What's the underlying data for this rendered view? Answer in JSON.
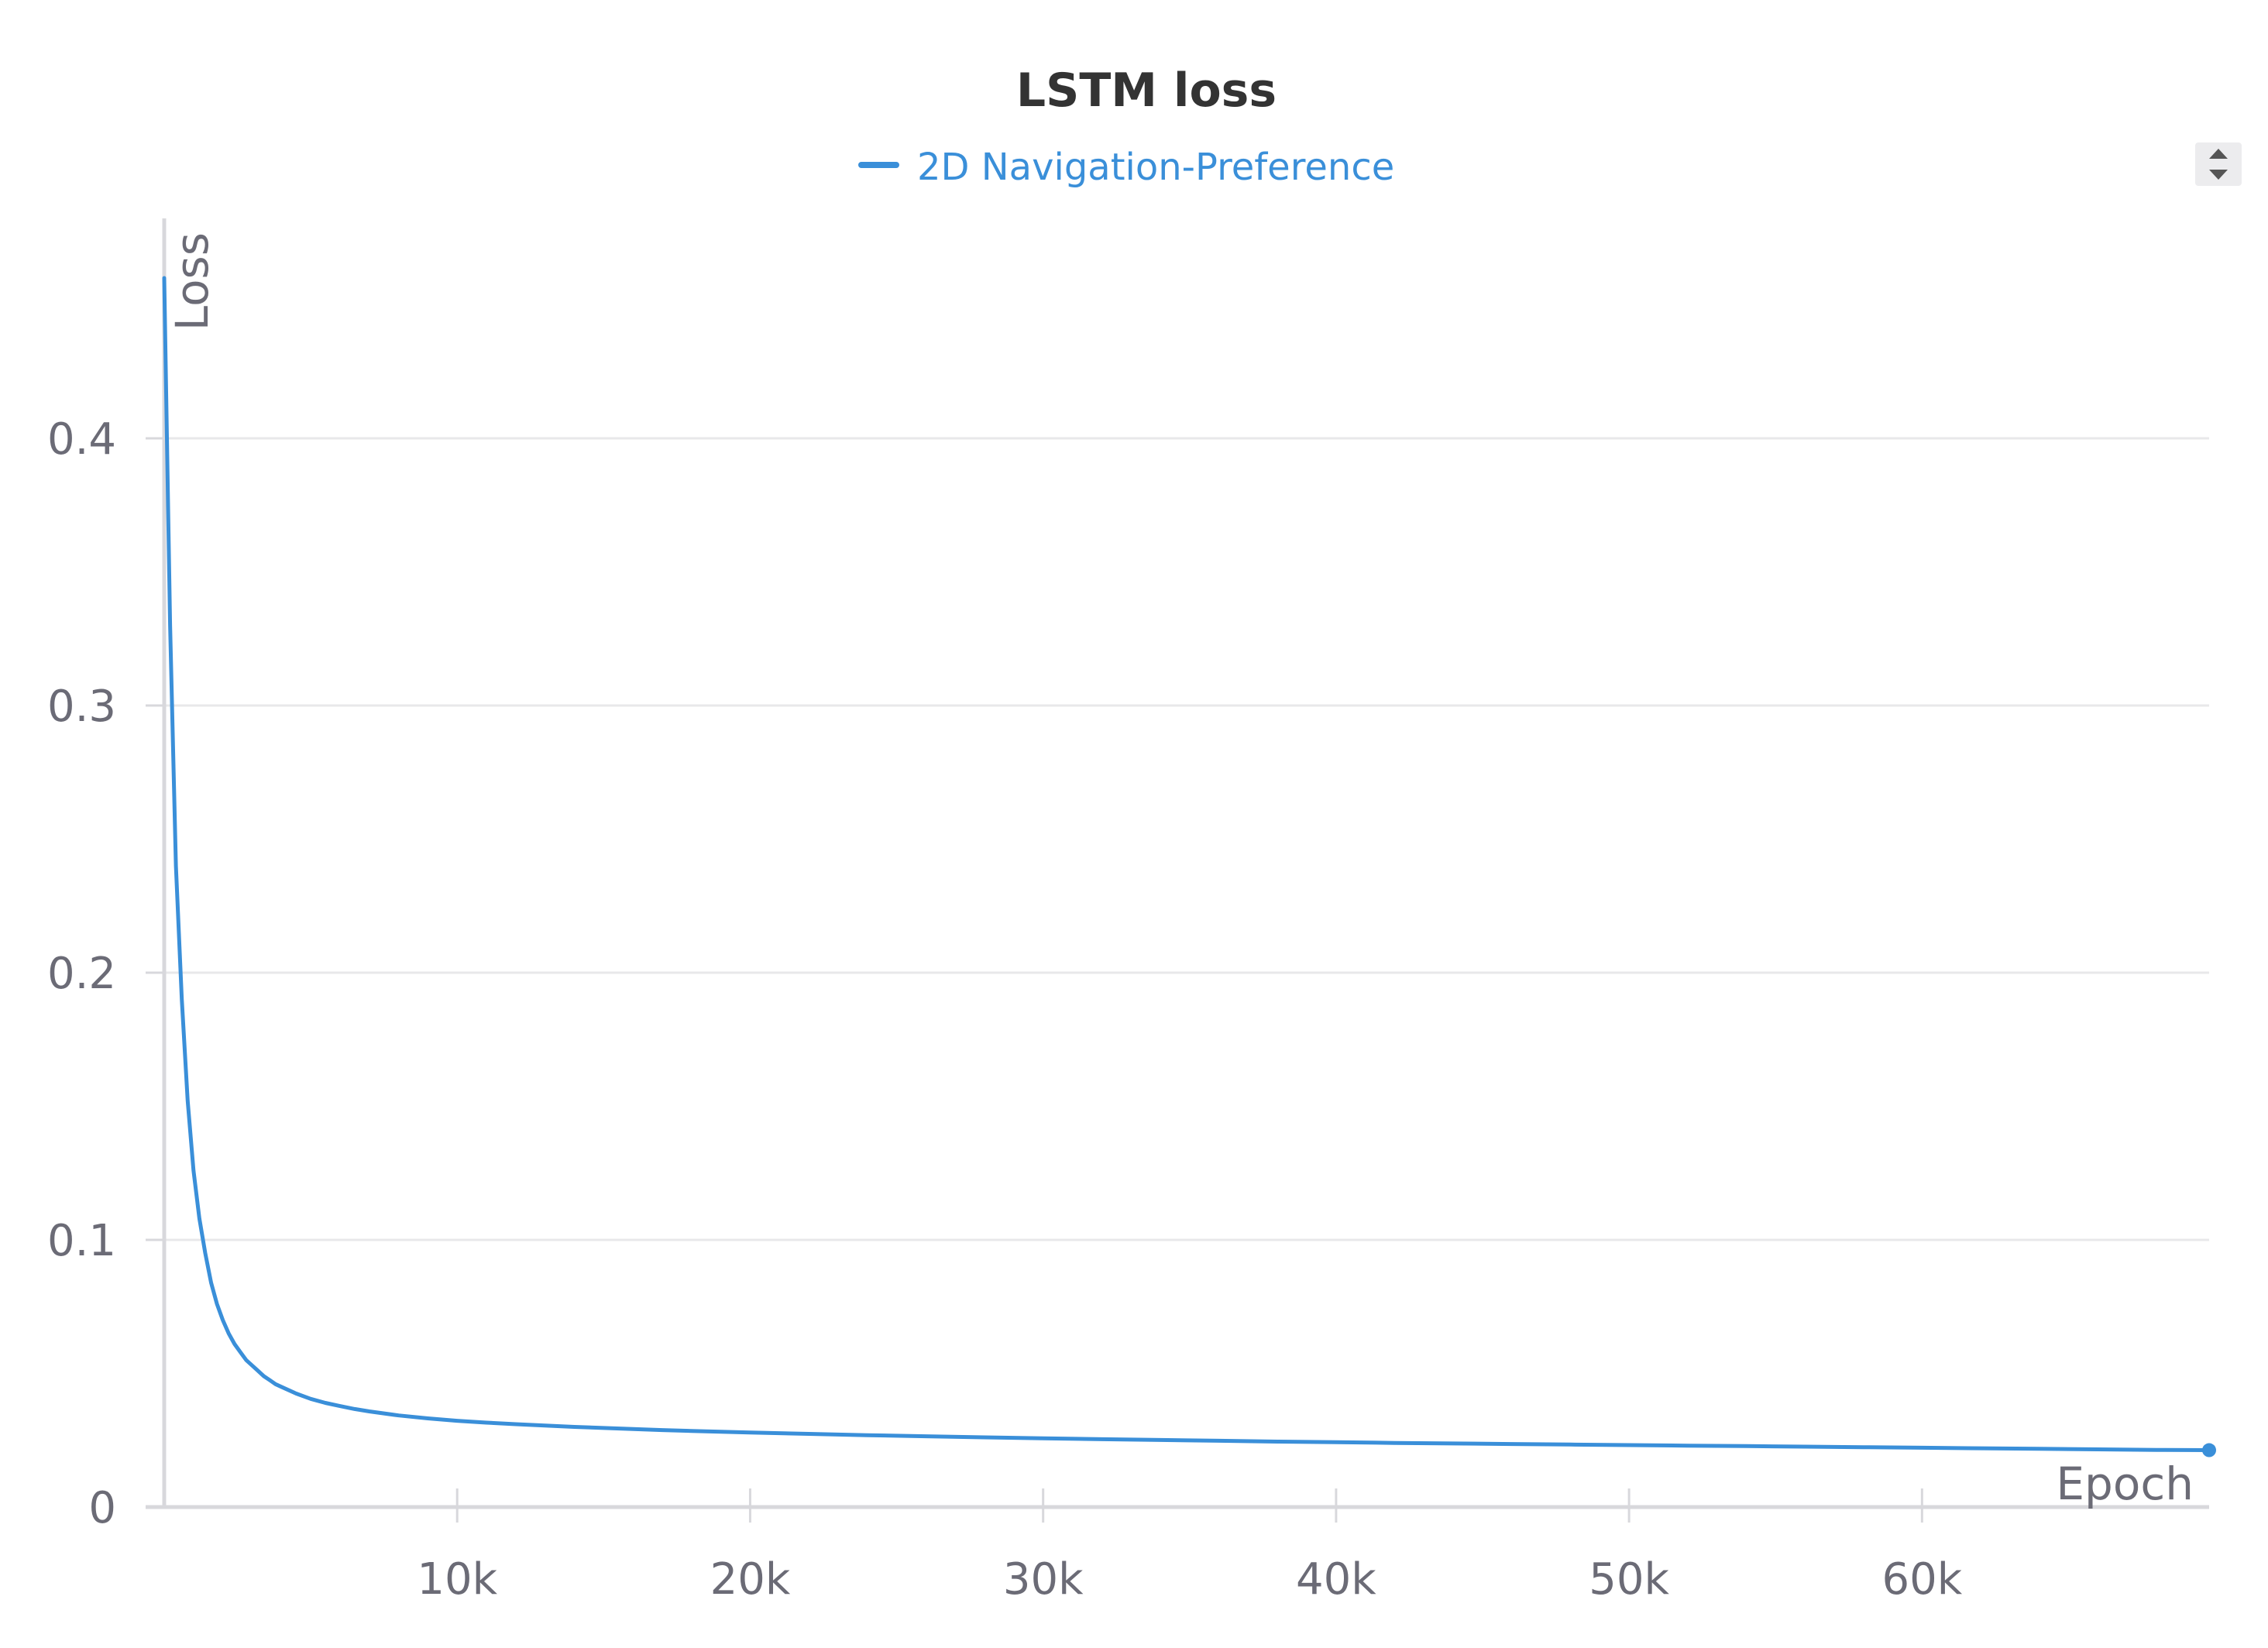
{
  "colors": {
    "series": "#3a8fd9",
    "grid": "#e8e8ea",
    "axis": "#d8d8dc",
    "text": "#6b6b76",
    "title": "#333333",
    "scroller_bg": "#ececee",
    "scroller_arrow": "#555555"
  },
  "icons": {
    "legend_scroller": "up-down-arrows-icon"
  },
  "chart_data": {
    "type": "line",
    "title": "LSTM loss",
    "xlabel": "Epoch",
    "ylabel": "Loss",
    "xlim": [
      0,
      69800
    ],
    "ylim": [
      0,
      0.48
    ],
    "xticks": [
      10000,
      20000,
      30000,
      40000,
      50000,
      60000
    ],
    "xtick_labels": [
      "10k",
      "20k",
      "30k",
      "40k",
      "50k",
      "60k"
    ],
    "yticks": [
      0,
      0.1,
      0.2,
      0.3,
      0.4
    ],
    "ytick_labels": [
      "0",
      "0.1",
      "0.2",
      "0.3",
      "0.4"
    ],
    "grid": "horizontal",
    "legend_position": "top-center",
    "series": [
      {
        "name": "2D Navigation-Preference",
        "x": [
          0,
          200,
          400,
          600,
          800,
          1000,
          1200,
          1400,
          1600,
          1800,
          2000,
          2200,
          2400,
          2600,
          2800,
          3000,
          3200,
          3400,
          3600,
          3800,
          4000,
          4500,
          5000,
          5500,
          6000,
          6500,
          7000,
          8000,
          9000,
          10000,
          11000,
          12000,
          13000,
          14000,
          15000,
          16000,
          17000,
          18000,
          19000,
          20000,
          22000,
          24000,
          26000,
          28000,
          30000,
          32000,
          34000,
          36000,
          38000,
          40000,
          42000,
          44000,
          46000,
          48000,
          50000,
          52000,
          54000,
          56000,
          58000,
          60000,
          62000,
          64000,
          66000,
          68000,
          69800
        ],
        "y": [
          0.46,
          0.33,
          0.24,
          0.19,
          0.152,
          0.126,
          0.108,
          0.095,
          0.084,
          0.076,
          0.07,
          0.065,
          0.061,
          0.058,
          0.055,
          0.053,
          0.051,
          0.049,
          0.0475,
          0.046,
          0.045,
          0.0425,
          0.0405,
          0.039,
          0.0378,
          0.0367,
          0.0358,
          0.0343,
          0.0332,
          0.0323,
          0.0316,
          0.031,
          0.0305,
          0.03,
          0.0296,
          0.0292,
          0.0288,
          0.0285,
          0.0282,
          0.0279,
          0.0274,
          0.0269,
          0.0265,
          0.0261,
          0.0257,
          0.0254,
          0.0251,
          0.0248,
          0.0245,
          0.0243,
          0.024,
          0.0238,
          0.0236,
          0.0234,
          0.0232,
          0.023,
          0.0228,
          0.0226,
          0.0224,
          0.0222,
          0.022,
          0.0218,
          0.0216,
          0.0214,
          0.0213
        ]
      }
    ]
  }
}
